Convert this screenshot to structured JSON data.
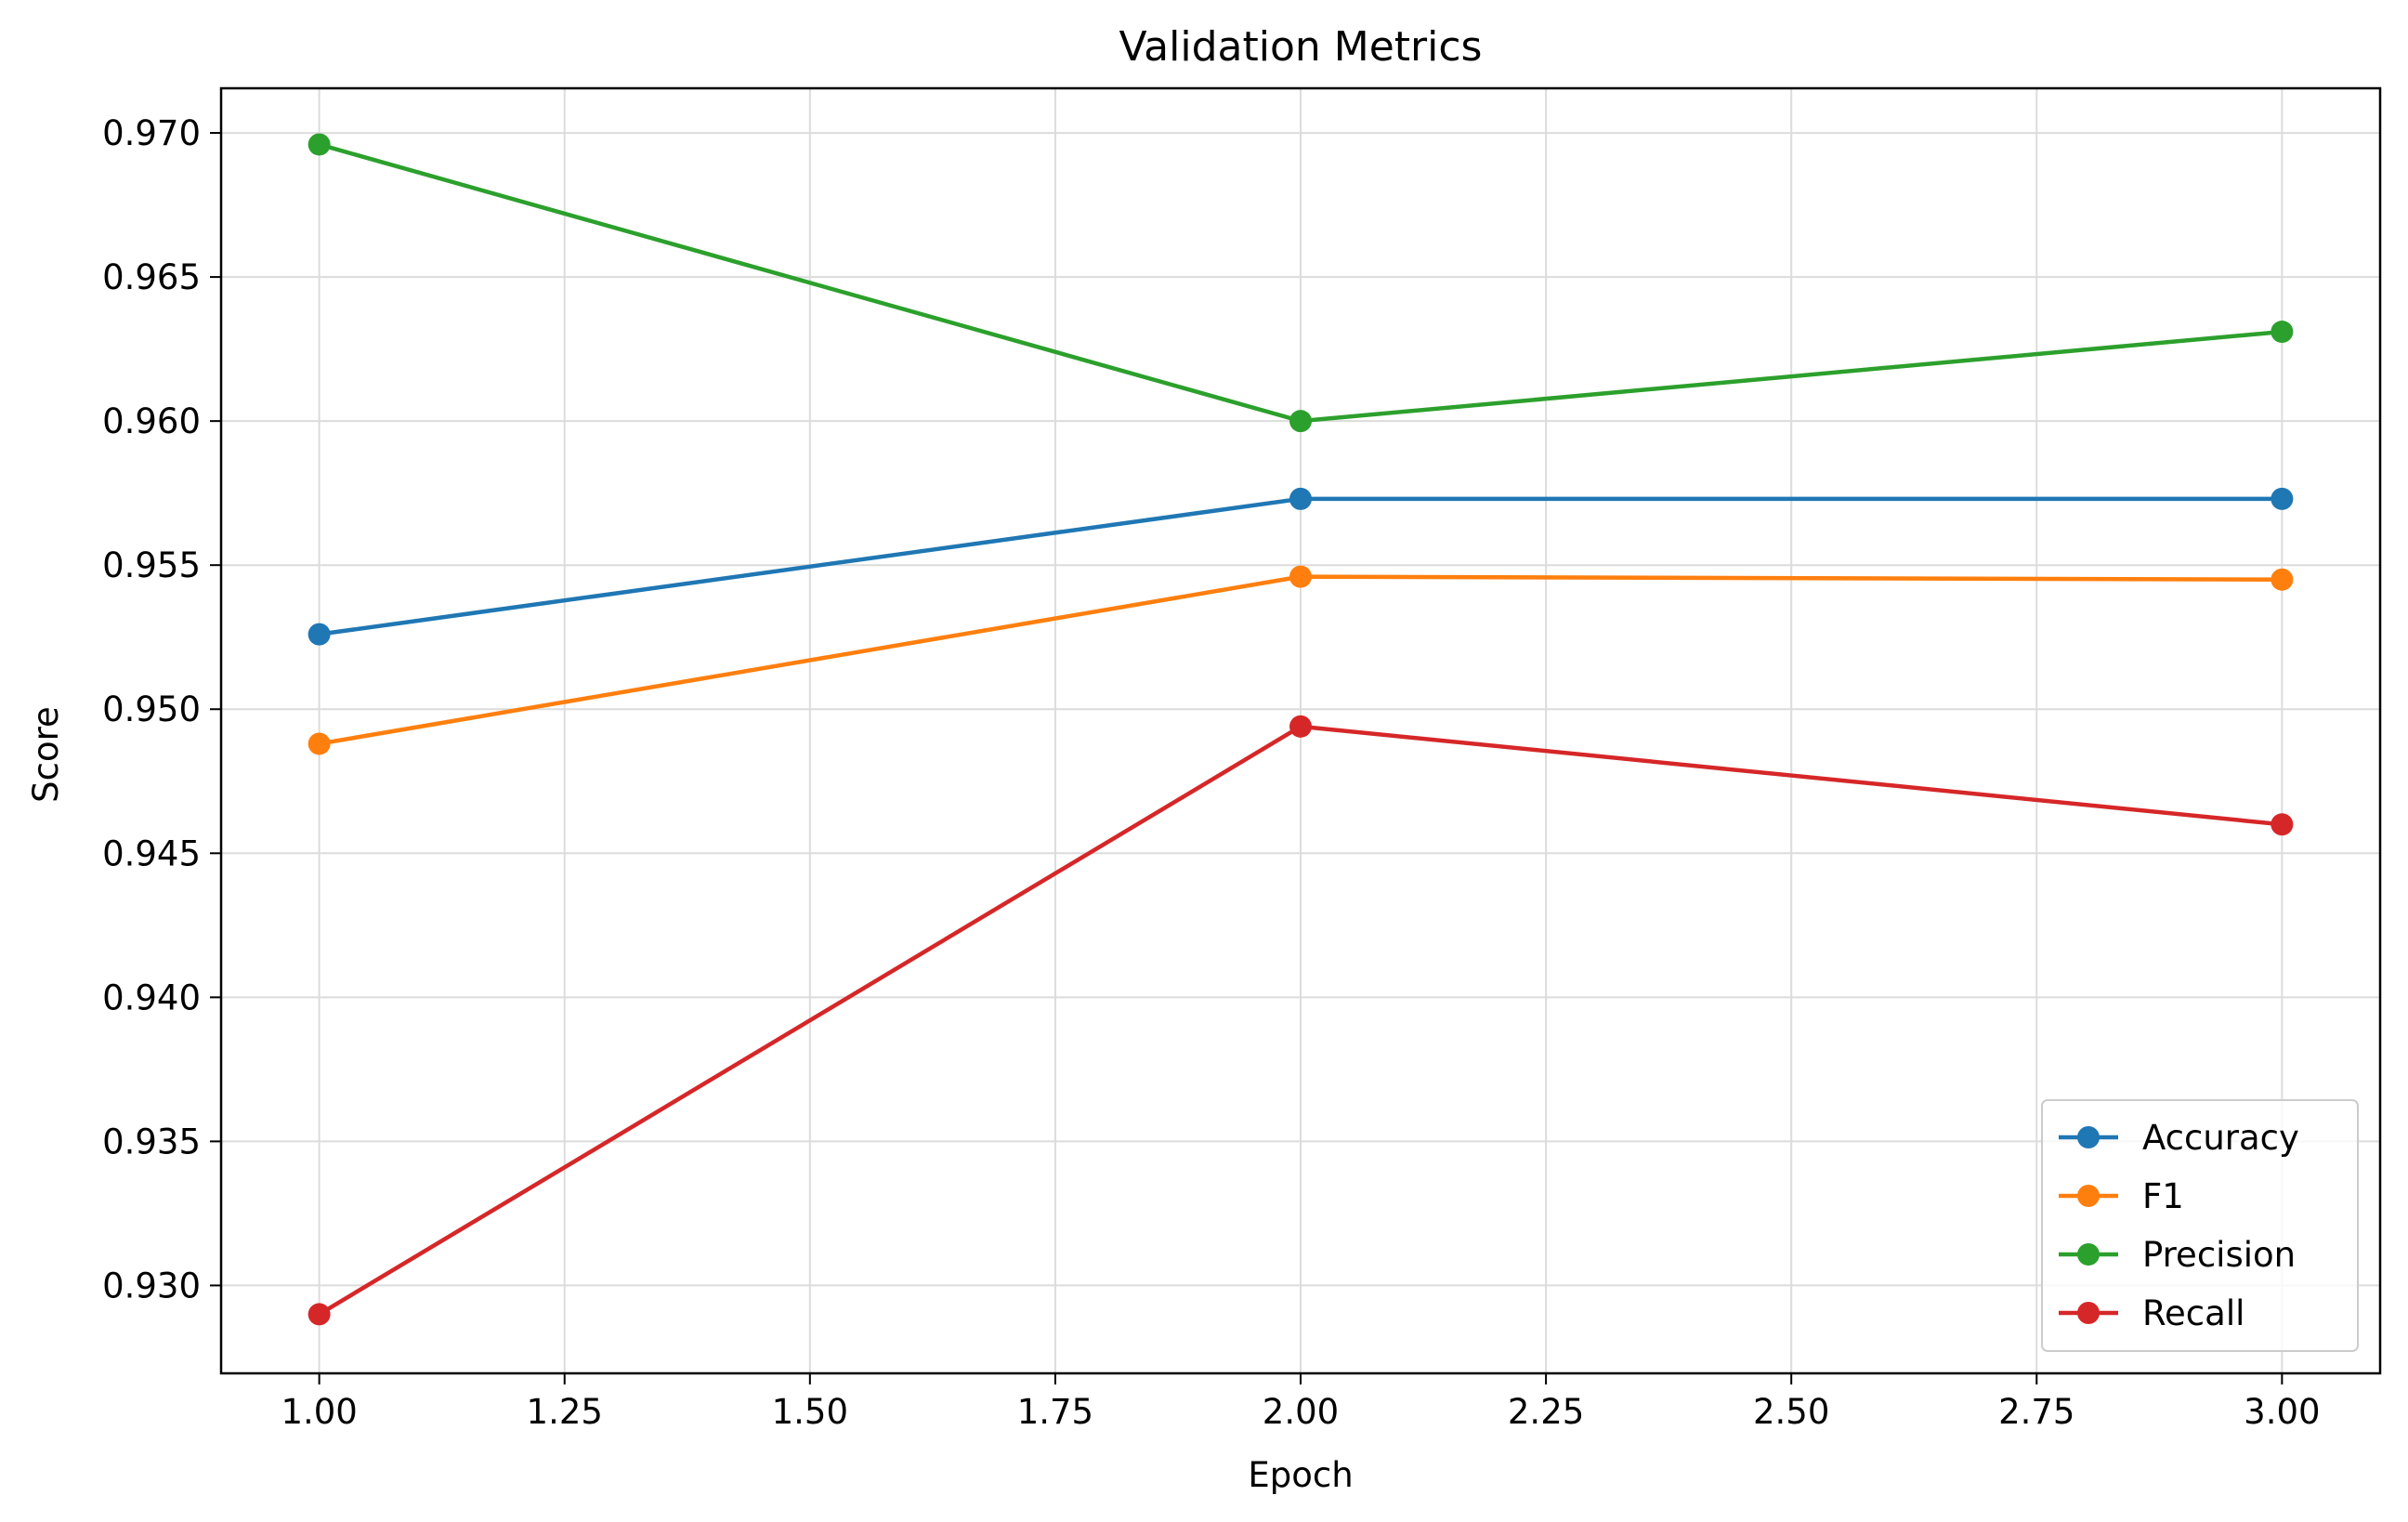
{
  "chart_data": {
    "type": "line",
    "title": "Validation Metrics",
    "xlabel": "Epoch",
    "ylabel": "Score",
    "x": [
      1,
      2,
      3
    ],
    "series": [
      {
        "name": "Accuracy",
        "values": [
          0.9526,
          0.9573,
          0.9573
        ],
        "color": "#1f77b4"
      },
      {
        "name": "F1",
        "values": [
          0.9488,
          0.9546,
          0.9545
        ],
        "color": "#ff7f0e"
      },
      {
        "name": "Precision",
        "values": [
          0.9696,
          0.96,
          0.9631
        ],
        "color": "#2ca02c"
      },
      {
        "name": "Recall",
        "values": [
          0.929,
          0.9494,
          0.946
        ],
        "color": "#d62728"
      }
    ],
    "xlim": [
      0.9,
      3.1
    ],
    "ylim": [
      0.92695,
      0.97155
    ],
    "xticks": [
      1.0,
      1.25,
      1.5,
      1.75,
      2.0,
      2.25,
      2.5,
      2.75,
      3.0
    ],
    "xtick_labels": [
      "1.00",
      "1.25",
      "1.50",
      "1.75",
      "2.00",
      "2.25",
      "2.50",
      "2.75",
      "3.00"
    ],
    "yticks": [
      0.93,
      0.935,
      0.94,
      0.945,
      0.95,
      0.955,
      0.96,
      0.965,
      0.97
    ],
    "ytick_labels": [
      "0.930",
      "0.935",
      "0.940",
      "0.945",
      "0.950",
      "0.955",
      "0.960",
      "0.965",
      "0.970"
    ],
    "grid": true,
    "legend_position": "lower-right",
    "marker": "circle"
  }
}
